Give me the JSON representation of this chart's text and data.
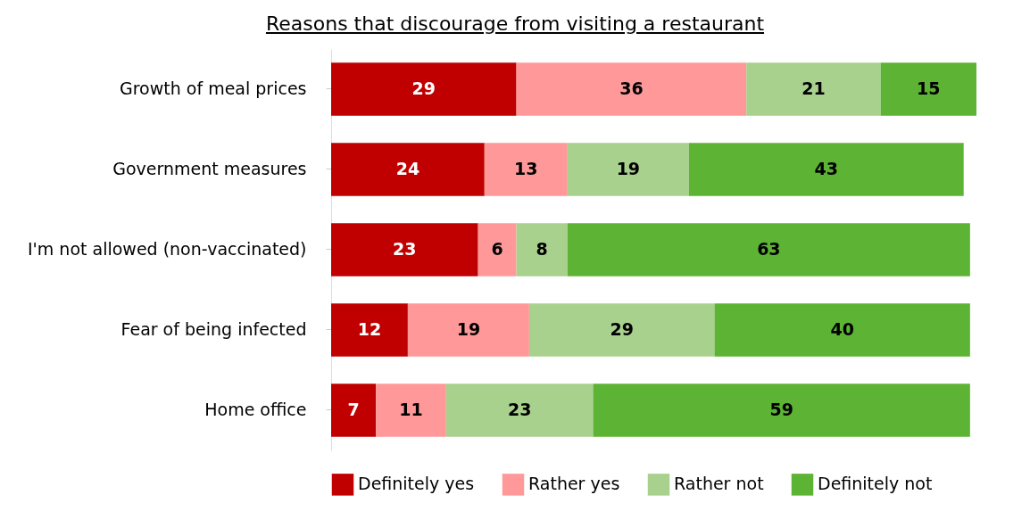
{
  "chart_data": {
    "type": "bar",
    "orientation": "horizontal",
    "stacked": true,
    "title": "Reasons that discourage from visiting a restaurant",
    "categories": [
      "Growth of meal prices",
      "Government measures",
      "I'm not allowed (non-vaccinated)",
      "Fear of being infected",
      "Home office"
    ],
    "series": [
      {
        "name": "Definitely yes",
        "color": "#c00000",
        "values": [
          29,
          24,
          23,
          12,
          7
        ]
      },
      {
        "name": "Rather yes",
        "color": "#ff9999",
        "values": [
          36,
          13,
          6,
          19,
          11
        ]
      },
      {
        "name": "Rather not",
        "color": "#a9d18e",
        "values": [
          21,
          19,
          8,
          29,
          23
        ]
      },
      {
        "name": "Definitely not",
        "color": "#5db334",
        "values": [
          15,
          43,
          63,
          40,
          59
        ]
      }
    ],
    "data_labels": true,
    "legend": "bottom"
  }
}
